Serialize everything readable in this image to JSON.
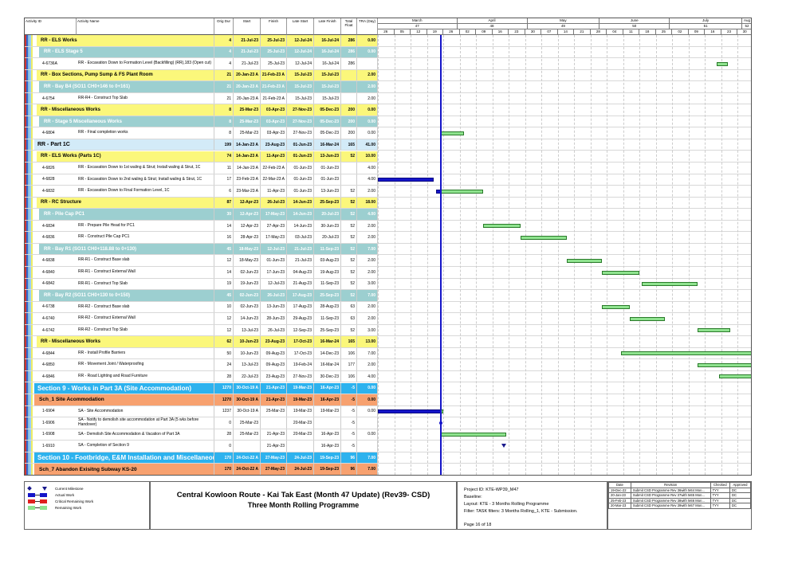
{
  "columns": {
    "id": "Activity ID",
    "name": "Activity Name",
    "dur": "Orig Dur",
    "start": "Start",
    "finish": "Finish",
    "ls": "Late Start",
    "lf": "Late Finish",
    "tf": "Total Float",
    "tra": "TRA (Day)"
  },
  "timescale": {
    "months": [
      {
        "label": "March",
        "week": "47"
      },
      {
        "label": "April",
        "week": "48"
      },
      {
        "label": "May",
        "week": "49"
      },
      {
        "label": "June",
        "week": "50"
      },
      {
        "label": "July",
        "week": "51"
      },
      {
        "label": "Aug",
        "week": "52"
      }
    ],
    "weeks": [
      "26",
      "05",
      "12",
      "19",
      "26",
      "02",
      "09",
      "16",
      "23",
      "30",
      "07",
      "14",
      "21",
      "28",
      "04",
      "11",
      "18",
      "25",
      "02",
      "09",
      "16",
      "23",
      "30"
    ],
    "data_date": "25-Mar-23"
  },
  "colors": {
    "actual": "#1414c8",
    "remaining": "#8fe38f",
    "critical": "#e02020",
    "milestone": "#1a1a8c",
    "yellow": "#fbf77b",
    "teal": "#9ccfd0",
    "section": "#2db2ee",
    "sch": "#f7a16f",
    "part": "#d3ebf8"
  },
  "rows": [
    {
      "type": "yellow",
      "id": "",
      "name": "RR - ELS Works",
      "dur": "4",
      "start": "21-Jul-23",
      "finish": "25-Jul-23",
      "ls": "12-Jul-24",
      "lf": "16-Jul-24",
      "tf": "286",
      "tra": "0.00"
    },
    {
      "type": "teal",
      "id": "",
      "name": "RR - ELS Stage 5",
      "dur": "4",
      "start": "21-Jul-23",
      "finish": "25-Jul-23",
      "ls": "12-Jul-24",
      "lf": "16-Jul-24",
      "tf": "286",
      "tra": "0.00"
    },
    {
      "type": "act",
      "id": "4-6736A",
      "name": "RR - Excavation Down to Formation Level (Backfilling) (RR),183 (Open cut)",
      "dur": "4",
      "start": "21-Jul-23",
      "finish": "25-Jul-23",
      "ls": "12-Jul-24",
      "lf": "16-Jul-24",
      "tf": "286",
      "tra": ""
    },
    {
      "type": "yellow",
      "id": "",
      "name": "RR - Box Sections, Pump Sump & FS Plant Room",
      "dur": "21",
      "start": "20-Jan-23 A",
      "finish": "21-Feb-23 A",
      "ls": "15-Jul-23",
      "lf": "15-Jul-23",
      "tf": "",
      "tra": "2.00"
    },
    {
      "type": "teal",
      "id": "",
      "name": "RR - Bay B4 (SO11 CH0+146 to 0+161)",
      "dur": "21",
      "start": "20-Jan-23 A",
      "finish": "21-Feb-23 A",
      "ls": "15-Jul-23",
      "lf": "15-Jul-23",
      "tf": "",
      "tra": "2.00"
    },
    {
      "type": "act",
      "id": "4-6754",
      "name": "RR-R4 - Construct Top Slab",
      "dur": "21",
      "start": "20-Jan-23 A",
      "finish": "21-Feb-23 A",
      "ls": "15-Jul-23",
      "lf": "15-Jul-23",
      "tf": "",
      "tra": "2.00"
    },
    {
      "type": "yellow",
      "id": "",
      "name": "RR - Miscellaneous Works",
      "dur": "8",
      "start": "25-Mar-23",
      "finish": "03-Apr-23",
      "ls": "27-Nov-23",
      "lf": "05-Dec-23",
      "tf": "200",
      "tra": "0.00"
    },
    {
      "type": "teal",
      "id": "",
      "name": "RR - Stage 5 Miscellaneous Works",
      "dur": "8",
      "start": "25-Mar-23",
      "finish": "03-Apr-23",
      "ls": "27-Nov-23",
      "lf": "05-Dec-23",
      "tf": "200",
      "tra": "0.00"
    },
    {
      "type": "act",
      "id": "4-6804",
      "name": "RR - Final completion works",
      "dur": "8",
      "start": "25-Mar-23",
      "finish": "03-Apr-23",
      "ls": "27-Nov-23",
      "lf": "05-Dec-23",
      "tf": "200",
      "tra": "0.00"
    },
    {
      "type": "part",
      "id": "",
      "name": "RR - Part 1C",
      "dur": "199",
      "start": "14-Jan-23 A",
      "finish": "23-Aug-23",
      "ls": "01-Jun-23",
      "lf": "16-Mar-24",
      "tf": "165",
      "tra": "41.00"
    },
    {
      "type": "yellow",
      "id": "",
      "name": "RR - ELS Works (Parts 1C)",
      "dur": "74",
      "start": "14-Jan-23 A",
      "finish": "11-Apr-23",
      "ls": "01-Jun-23",
      "lf": "13-Jun-23",
      "tf": "52",
      "tra": "10.00"
    },
    {
      "type": "act",
      "id": "4-6826",
      "name": "RR - Excavation Down to 1st waling & Strut; Install waling & Strut, 1C",
      "dur": "11",
      "start": "14-Jan-23 A",
      "finish": "22-Feb-23 A",
      "ls": "01-Jun-23",
      "lf": "01-Jun-23",
      "tf": "",
      "tra": "4.00"
    },
    {
      "type": "act",
      "id": "4-6828",
      "name": "RR - Excavation Down to 2nd waling & Strut; Install waling & Strut, 1C",
      "dur": "17",
      "start": "23-Feb-23 A",
      "finish": "22-Mar-23 A",
      "ls": "01-Jun-23",
      "lf": "01-Jun-23",
      "tf": "",
      "tra": "4.00"
    },
    {
      "type": "act",
      "id": "4-6832",
      "name": "RR - Excavation Down to Final Formation Level, 1C",
      "dur": "6",
      "start": "23-Mar-23 A",
      "finish": "11-Apr-23",
      "ls": "01-Jun-23",
      "lf": "13-Jun-23",
      "tf": "52",
      "tra": "2.00"
    },
    {
      "type": "yellow",
      "id": "",
      "name": "RR - RC Structure",
      "dur": "87",
      "start": "12-Apr-23",
      "finish": "26-Jul-23",
      "ls": "14-Jun-23",
      "lf": "25-Sep-23",
      "tf": "52",
      "tra": "18.00"
    },
    {
      "type": "teal",
      "id": "",
      "name": "RR - Pile Cap PC1",
      "dur": "30",
      "start": "12-Apr-23",
      "finish": "17-May-23",
      "ls": "14-Jun-23",
      "lf": "20-Jul-23",
      "tf": "52",
      "tra": "4.00"
    },
    {
      "type": "act",
      "id": "4-6834",
      "name": "RR - Prepare Pile Head for PC1",
      "dur": "14",
      "start": "12-Apr-23",
      "finish": "27-Apr-23",
      "ls": "14-Jun-23",
      "lf": "30-Jun-23",
      "tf": "52",
      "tra": "2.00"
    },
    {
      "type": "act",
      "id": "4-6836",
      "name": "RR - Construct Pile Cap PC1",
      "dur": "16",
      "start": "28-Apr-23",
      "finish": "17-May-23",
      "ls": "03-Jul-23",
      "lf": "20-Jul-23",
      "tf": "52",
      "tra": "2.00"
    },
    {
      "type": "teal",
      "id": "",
      "name": "RR - Bay R1 (SO11 CH0+118.88 to 0+130)",
      "dur": "45",
      "start": "18-May-23",
      "finish": "12-Jul-23",
      "ls": "21-Jul-23",
      "lf": "11-Sep-23",
      "tf": "52",
      "tra": "7.00"
    },
    {
      "type": "act",
      "id": "4-6838",
      "name": "RR-R1 - Construct Base slab",
      "dur": "12",
      "start": "18-May-23",
      "finish": "01-Jun-23",
      "ls": "21-Jul-23",
      "lf": "03-Aug-23",
      "tf": "52",
      "tra": "2.00"
    },
    {
      "type": "act",
      "id": "4-6840",
      "name": "RR-R1 - Construct External Wall",
      "dur": "14",
      "start": "02-Jun-23",
      "finish": "17-Jun-23",
      "ls": "04-Aug-23",
      "lf": "19-Aug-23",
      "tf": "52",
      "tra": "2.00"
    },
    {
      "type": "act",
      "id": "4-6842",
      "name": "RR-R1 - Construct Top Slab",
      "dur": "19",
      "start": "19-Jun-23",
      "finish": "12-Jul-23",
      "ls": "21-Aug-23",
      "lf": "11-Sep-23",
      "tf": "52",
      "tra": "3.00"
    },
    {
      "type": "teal",
      "id": "",
      "name": "RR - Bay R2 (SO11 CH0+130 to 0+150)",
      "dur": "45",
      "start": "02-Jun-23",
      "finish": "26-Jul-23",
      "ls": "17-Aug-23",
      "lf": "25-Sep-23",
      "tf": "52",
      "tra": "7.00"
    },
    {
      "type": "act",
      "id": "4-6738",
      "name": "RR-R2 - Construct Base slab",
      "dur": "10",
      "start": "02-Jun-23",
      "finish": "13-Jun-23",
      "ls": "17-Aug-23",
      "lf": "28-Aug-23",
      "tf": "63",
      "tra": "2.00"
    },
    {
      "type": "act",
      "id": "4-6740",
      "name": "RR-R2 - Construct External Wall",
      "dur": "12",
      "start": "14-Jun-23",
      "finish": "28-Jun-23",
      "ls": "29-Aug-23",
      "lf": "11-Sep-23",
      "tf": "63",
      "tra": "2.00"
    },
    {
      "type": "act",
      "id": "4-6742",
      "name": "RR-R2 - Construct Top Slab",
      "dur": "12",
      "start": "13-Jul-23",
      "finish": "26-Jul-23",
      "ls": "12-Sep-23",
      "lf": "25-Sep-23",
      "tf": "52",
      "tra": "3.00"
    },
    {
      "type": "yellow",
      "id": "",
      "name": "RR - Miscellaneous Works",
      "dur": "62",
      "start": "10-Jun-23",
      "finish": "23-Aug-23",
      "ls": "17-Oct-23",
      "lf": "16-Mar-24",
      "tf": "165",
      "tra": "13.00"
    },
    {
      "type": "act",
      "id": "4-6844",
      "name": "RR - Install Profile Barriers",
      "dur": "50",
      "start": "10-Jun-23",
      "finish": "09-Aug-23",
      "ls": "17-Oct-23",
      "lf": "14-Dec-23",
      "tf": "106",
      "tra": "7.00"
    },
    {
      "type": "act",
      "id": "4-6850",
      "name": "RR - Movement Joint / Waterproofing",
      "dur": "24",
      "start": "13-Jul-23",
      "finish": "09-Aug-23",
      "ls": "19-Feb-24",
      "lf": "16-Mar-24",
      "tf": "177",
      "tra": "2.00"
    },
    {
      "type": "act",
      "id": "4-6846",
      "name": "RR - Road Lighting and Road Furniture",
      "dur": "28",
      "start": "22-Jul-23",
      "finish": "23-Aug-23",
      "ls": "27-Nov-23",
      "lf": "30-Dec-23",
      "tf": "106",
      "tra": "4.00"
    },
    {
      "type": "section",
      "id": "",
      "name": "Section 9 - Works in Part 3A (Site Accommodation)",
      "dur": "1270",
      "start": "30-Oct-19 A",
      "finish": "21-Apr-23",
      "ls": "19-Mar-23",
      "lf": "16-Apr-23",
      "tf": "-5",
      "tra": "0.00"
    },
    {
      "type": "sch",
      "id": "",
      "name": "Sch_1 Site Acommodation",
      "dur": "1270",
      "start": "30-Oct-19 A",
      "finish": "21-Apr-23",
      "ls": "19-Mar-23",
      "lf": "16-Apr-23",
      "tf": "-5",
      "tra": "0.00"
    },
    {
      "type": "act",
      "id": "1-6904",
      "name": "SA - Site Accommodation",
      "dur": "1237",
      "start": "30-Oct-19 A",
      "finish": "25-Mar-23",
      "ls": "19-Mar-23",
      "lf": "19-Mar-23",
      "tf": "-5",
      "tra": "0.00"
    },
    {
      "type": "act",
      "id": "1-6906",
      "name": "SA - Notify to demolish site accommodation at Part 3A (5 wks before Handover)",
      "dur": "0",
      "start": "25-Mar-23",
      "finish": "",
      "ls": "20-Mar-23",
      "lf": "",
      "tf": "-5",
      "tra": ""
    },
    {
      "type": "act",
      "id": "1-6908",
      "name": "SA - Demolish Site Accommodation & Vacation of Part 3A",
      "dur": "28",
      "start": "25-Mar-23",
      "finish": "21-Apr-23",
      "ls": "20-Mar-23",
      "lf": "16-Apr-23",
      "tf": "-5",
      "tra": "0.00"
    },
    {
      "type": "act",
      "id": "1-6910",
      "name": "SA - Completion of Section 9",
      "dur": "0",
      "start": "",
      "finish": "21-Apr-23",
      "ls": "",
      "lf": "16-Apr-23",
      "tf": "-5",
      "tra": ""
    },
    {
      "type": "section",
      "id": "",
      "name": "Section 10 - Footbridge, E&M Installation and Miscellaneous Wo",
      "dur": "170",
      "start": "24-Oct-22 A",
      "finish": "27-May-23",
      "ls": "24-Jul-23",
      "lf": "19-Sep-23",
      "tf": "96",
      "tra": "7.00"
    },
    {
      "type": "sch",
      "id": "",
      "name": "Sch_7 Abandon Exisitng Subway KS-20",
      "dur": "170",
      "start": "24-Oct-22 A",
      "finish": "27-May-23",
      "ls": "24-Jul-23",
      "lf": "19-Sep-23",
      "tf": "96",
      "tra": "7.00"
    }
  ],
  "legend": {
    "items": [
      {
        "label": "Current Milestone",
        "icon": "milestone"
      },
      {
        "label": "Actual Work",
        "icon": "actual"
      },
      {
        "label": "Critical Remaining Work",
        "icon": "critical"
      },
      {
        "label": "Remaining Work",
        "icon": "remaining"
      }
    ]
  },
  "title": {
    "line1": "Central Kowloon Route - Kai Tak East (Month 47 Update) (Rev39- CSD)",
    "line2": "Three Month Rolling Programme"
  },
  "project": {
    "id": "Project ID: KTE-WP39_M47",
    "baseline": "Baseline:",
    "layout": "Layout: KTE - 3 Months Rolling Programme",
    "filter": "Filter: TASK filters: 3 Months Rolling_1, KTE - Submission.",
    "page": "Page 16 of 18"
  },
  "revisions": {
    "headers": [
      "Date",
      "Revision",
      "Checked",
      "Approved"
    ],
    "rows": [
      [
        "19-Dec-22",
        "Submit CSD Programme Rev 36with M44 Mon...",
        "TYY",
        "DC"
      ],
      [
        "20-Jan-23",
        "Submit CSD Programme Rev 37with M45 Mon...",
        "TYY",
        "DC"
      ],
      [
        "25-Feb-23",
        "Submit CSD Programme Rev 38with M46 Mon...",
        "TYY",
        "DC"
      ],
      [
        "20-Mar-23",
        "Submit CSD Programme Rev 39with M47 Mon...",
        "TYY",
        "DC"
      ]
    ]
  }
}
